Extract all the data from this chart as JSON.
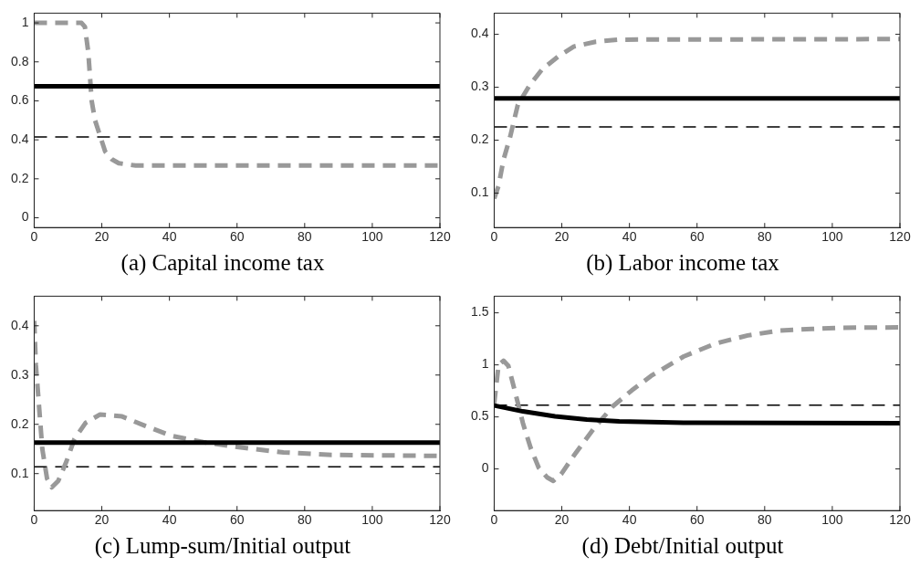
{
  "chart_data": [
    {
      "type": "line",
      "title": "(a) Capital income tax",
      "xlim": [
        0,
        120
      ],
      "xticks": [
        0,
        20,
        40,
        60,
        80,
        100,
        120
      ],
      "ylim": [
        -0.05,
        1.05
      ],
      "yticks": [
        0,
        0.2,
        0.4,
        0.6,
        0.8,
        1
      ],
      "grid": false,
      "legend": false,
      "series": [
        {
          "color": "#000000",
          "line_style": "solid",
          "x": [
            0,
            120
          ],
          "values": [
            0.675,
            0.675
          ]
        },
        {
          "color": "#999999",
          "line_style": "dashed",
          "x": [
            0,
            14,
            15,
            16,
            17,
            18,
            19.5,
            21,
            23,
            25,
            30,
            120
          ],
          "values": [
            1,
            1,
            0.98,
            0.85,
            0.6,
            0.5,
            0.42,
            0.34,
            0.3,
            0.28,
            0.268,
            0.268
          ]
        }
      ],
      "ref_lines": [
        {
          "axis": "y",
          "value": 0.415,
          "color": "#000000",
          "line_style": "dashed"
        }
      ]
    },
    {
      "type": "line",
      "title": "(b) Labor income tax",
      "xlim": [
        0,
        120
      ],
      "xticks": [
        0,
        20,
        40,
        60,
        80,
        100,
        120
      ],
      "ylim": [
        0.035,
        0.44
      ],
      "yticks": [
        0.1,
        0.2,
        0.3,
        0.4
      ],
      "grid": false,
      "legend": false,
      "series": [
        {
          "color": "#000000",
          "line_style": "solid",
          "x": [
            0,
            120
          ],
          "values": [
            0.279,
            0.279
          ]
        },
        {
          "color": "#999999",
          "line_style": "dashed",
          "x": [
            0,
            1.3,
            2.75,
            4.7,
            7,
            10.4,
            14.2,
            18.9,
            23.6,
            30,
            37,
            120
          ],
          "values": [
            0.09,
            0.114,
            0.163,
            0.206,
            0.267,
            0.303,
            0.334,
            0.358,
            0.377,
            0.386,
            0.39,
            0.391
          ]
        }
      ],
      "ref_lines": [
        {
          "axis": "y",
          "value": 0.225,
          "color": "#000000",
          "line_style": "dashed"
        }
      ]
    },
    {
      "type": "line",
      "title": "(c) Lump-sum/Initial output",
      "xlim": [
        0,
        120
      ],
      "xticks": [
        0,
        20,
        40,
        60,
        80,
        100,
        120
      ],
      "ylim": [
        0.025,
        0.46
      ],
      "yticks": [
        0.1,
        0.2,
        0.3,
        0.4
      ],
      "grid": false,
      "legend": false,
      "series": [
        {
          "color": "#000000",
          "line_style": "solid",
          "x": [
            0,
            120
          ],
          "values": [
            0.163,
            0.163
          ]
        },
        {
          "color": "#999999",
          "line_style": "dashed",
          "x": [
            0,
            0.5,
            1.4,
            2.4,
            3.8,
            5.2,
            7.1,
            9.5,
            11.9,
            15.2,
            19.5,
            26,
            32.8,
            40.4,
            50,
            60,
            73.7,
            88,
            120
          ],
          "values": [
            0.41,
            0.32,
            0.24,
            0.15,
            0.09,
            0.072,
            0.085,
            0.124,
            0.17,
            0.203,
            0.22,
            0.216,
            0.197,
            0.177,
            0.164,
            0.154,
            0.143,
            0.138,
            0.136
          ]
        }
      ],
      "ref_lines": [
        {
          "axis": "y",
          "value": 0.114,
          "color": "#000000",
          "line_style": "dashed"
        }
      ]
    },
    {
      "type": "line",
      "title": "(d) Debt/Initial output",
      "xlim": [
        0,
        120
      ],
      "xticks": [
        0,
        20,
        40,
        60,
        80,
        100,
        120
      ],
      "ylim": [
        -0.4,
        1.66
      ],
      "yticks": [
        0,
        0.5,
        1,
        1.5
      ],
      "grid": false,
      "legend": false,
      "series": [
        {
          "color": "#000000",
          "line_style": "solid",
          "x": [
            0,
            8.5,
            18,
            27.4,
            37,
            56,
            120
          ],
          "values": [
            0.61,
            0.553,
            0.506,
            0.475,
            0.457,
            0.444,
            0.44
          ]
        },
        {
          "color": "#999999",
          "line_style": "dashed",
          "x": [
            0,
            1.3,
            2.75,
            4.2,
            6.1,
            8.5,
            10.8,
            13.2,
            15.6,
            17.5,
            19.8,
            23.6,
            29.3,
            35,
            40.7,
            46.4,
            56,
            65.4,
            75,
            84.4,
            94,
            103,
            120
          ],
          "values": [
            0.63,
            1,
            1.04,
            0.99,
            0.75,
            0.44,
            0.2,
            0.01,
            -0.08,
            -0.115,
            -0.05,
            0.13,
            0.38,
            0.6,
            0.755,
            0.894,
            1.08,
            1.205,
            1.283,
            1.33,
            1.345,
            1.357,
            1.36
          ]
        }
      ],
      "ref_lines": [
        {
          "axis": "y",
          "value": 0.612,
          "color": "#000000",
          "line_style": "dashed"
        }
      ]
    }
  ]
}
